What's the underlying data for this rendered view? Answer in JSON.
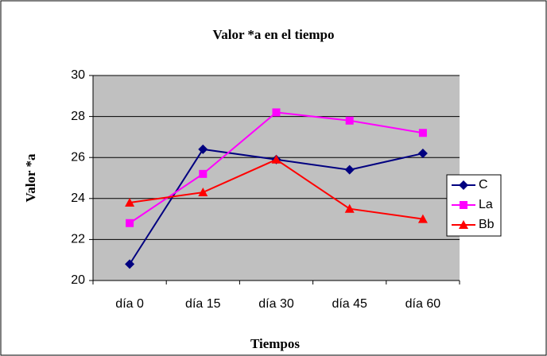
{
  "chart_data": {
    "type": "line",
    "title": "Valor *a en el tiempo",
    "x_label": "Tiempos",
    "y_label": "Valor *a",
    "categories": [
      "día 0",
      "día 15",
      "día 30",
      "día 45",
      "día 60"
    ],
    "series": [
      {
        "name": "C",
        "color": "#000080",
        "marker": "diamond",
        "values": [
          20.8,
          26.4,
          25.9,
          25.4,
          26.2
        ]
      },
      {
        "name": "La",
        "color": "#ff00ff",
        "marker": "square",
        "values": [
          22.8,
          25.2,
          28.2,
          27.8,
          27.2
        ]
      },
      {
        "name": "Bb",
        "color": "#ff0000",
        "marker": "triangle",
        "values": [
          23.8,
          24.3,
          25.9,
          23.5,
          23.0
        ]
      }
    ],
    "ylim": [
      20,
      30
    ],
    "yticks": [
      20,
      22,
      24,
      26,
      28,
      30
    ],
    "grid": true,
    "legend": "right",
    "plot_background": "#c0c0c0"
  }
}
